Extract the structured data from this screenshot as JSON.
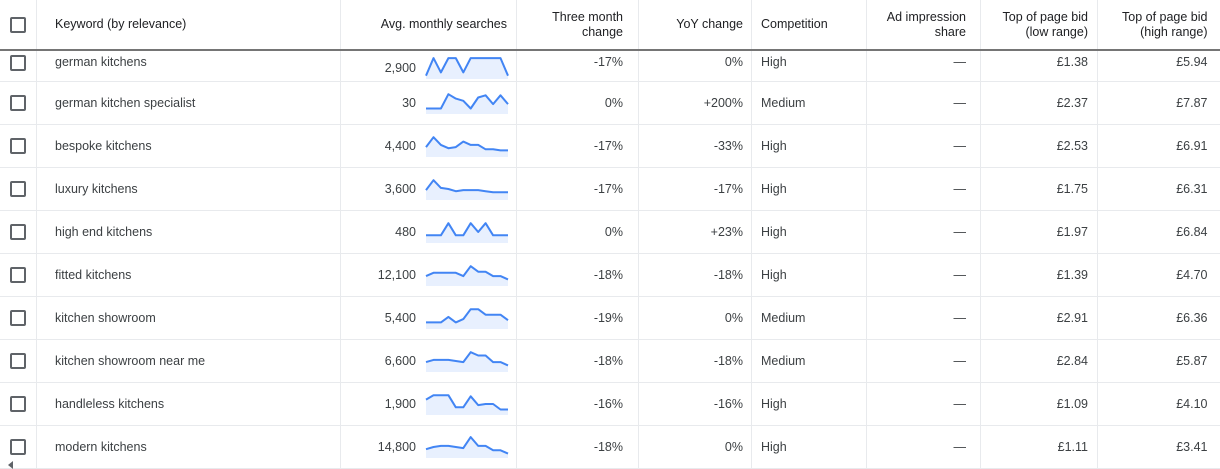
{
  "columns": {
    "keyword": "Keyword (by relevance)",
    "avg": "Avg. monthly searches",
    "three_l1": "Three month",
    "three_l2": "change",
    "yoy": "YoY change",
    "competition": "Competition",
    "ad_l1": "Ad impression",
    "ad_l2": "share",
    "low_l1": "Top of page bid",
    "low_l2": "(low range)",
    "high_l1": "Top of page bid",
    "high_l2": "(high range)"
  },
  "colors": {
    "sparkline": "#4285f4",
    "sparkline_fill": "#e8f0fe"
  },
  "rows": [
    {
      "keyword": "german kitchens",
      "avg": "2,900",
      "trend": [
        0.15,
        0.95,
        0.3,
        0.95,
        0.95,
        0.3,
        0.95,
        0.95,
        0.95,
        0.95,
        0.95,
        0.15
      ],
      "three": "-17%",
      "yoy": "0%",
      "competition": "High",
      "ad_share": "—",
      "low": "£1.38",
      "high": "£5.94"
    },
    {
      "keyword": "german kitchen specialist",
      "avg": "30",
      "trend": [
        0.25,
        0.25,
        0.25,
        0.9,
        0.7,
        0.6,
        0.25,
        0.75,
        0.85,
        0.45,
        0.85,
        0.45
      ],
      "three": "0%",
      "yoy": "+200%",
      "competition": "Medium",
      "ad_share": "—",
      "low": "£2.37",
      "high": "£7.87"
    },
    {
      "keyword": "bespoke kitchens",
      "avg": "4,400",
      "trend": [
        0.45,
        0.9,
        0.55,
        0.4,
        0.45,
        0.7,
        0.55,
        0.55,
        0.35,
        0.35,
        0.3,
        0.3
      ],
      "three": "-17%",
      "yoy": "-33%",
      "competition": "High",
      "ad_share": "—",
      "low": "£2.53",
      "high": "£6.91"
    },
    {
      "keyword": "luxury kitchens",
      "avg": "3,600",
      "trend": [
        0.45,
        0.9,
        0.55,
        0.5,
        0.4,
        0.45,
        0.45,
        0.45,
        0.4,
        0.35,
        0.35,
        0.35
      ],
      "three": "-17%",
      "yoy": "-17%",
      "competition": "High",
      "ad_share": "—",
      "low": "£1.75",
      "high": "£6.31"
    },
    {
      "keyword": "high end kitchens",
      "avg": "480",
      "trend": [
        0.35,
        0.35,
        0.35,
        0.9,
        0.35,
        0.35,
        0.9,
        0.5,
        0.9,
        0.35,
        0.35,
        0.35
      ],
      "three": "0%",
      "yoy": "+23%",
      "competition": "High",
      "ad_share": "—",
      "low": "£1.97",
      "high": "£6.84"
    },
    {
      "keyword": "fitted kitchens",
      "avg": "12,100",
      "trend": [
        0.45,
        0.6,
        0.6,
        0.6,
        0.6,
        0.45,
        0.9,
        0.65,
        0.65,
        0.45,
        0.45,
        0.3
      ],
      "three": "-18%",
      "yoy": "-18%",
      "competition": "High",
      "ad_share": "—",
      "low": "£1.39",
      "high": "£4.70"
    },
    {
      "keyword": "kitchen showroom",
      "avg": "5,400",
      "trend": [
        0.3,
        0.3,
        0.3,
        0.55,
        0.3,
        0.45,
        0.9,
        0.9,
        0.65,
        0.65,
        0.65,
        0.4
      ],
      "three": "-19%",
      "yoy": "0%",
      "competition": "Medium",
      "ad_share": "—",
      "low": "£2.91",
      "high": "£6.36"
    },
    {
      "keyword": "kitchen showroom near me",
      "avg": "6,600",
      "trend": [
        0.45,
        0.55,
        0.55,
        0.55,
        0.5,
        0.45,
        0.9,
        0.75,
        0.75,
        0.45,
        0.45,
        0.3
      ],
      "three": "-18%",
      "yoy": "-18%",
      "competition": "Medium",
      "ad_share": "—",
      "low": "£2.84",
      "high": "£5.87"
    },
    {
      "keyword": "handleless kitchens",
      "avg": "1,900",
      "trend": [
        0.7,
        0.9,
        0.9,
        0.9,
        0.35,
        0.35,
        0.85,
        0.45,
        0.5,
        0.5,
        0.25,
        0.25
      ],
      "three": "-16%",
      "yoy": "-16%",
      "competition": "High",
      "ad_share": "—",
      "low": "£1.09",
      "high": "£4.10"
    },
    {
      "keyword": "modern kitchens",
      "avg": "14,800",
      "trend": [
        0.4,
        0.5,
        0.55,
        0.55,
        0.5,
        0.45,
        0.95,
        0.55,
        0.55,
        0.35,
        0.35,
        0.2
      ],
      "three": "-18%",
      "yoy": "0%",
      "competition": "High",
      "ad_share": "—",
      "low": "£1.11",
      "high": "£3.41"
    }
  ]
}
